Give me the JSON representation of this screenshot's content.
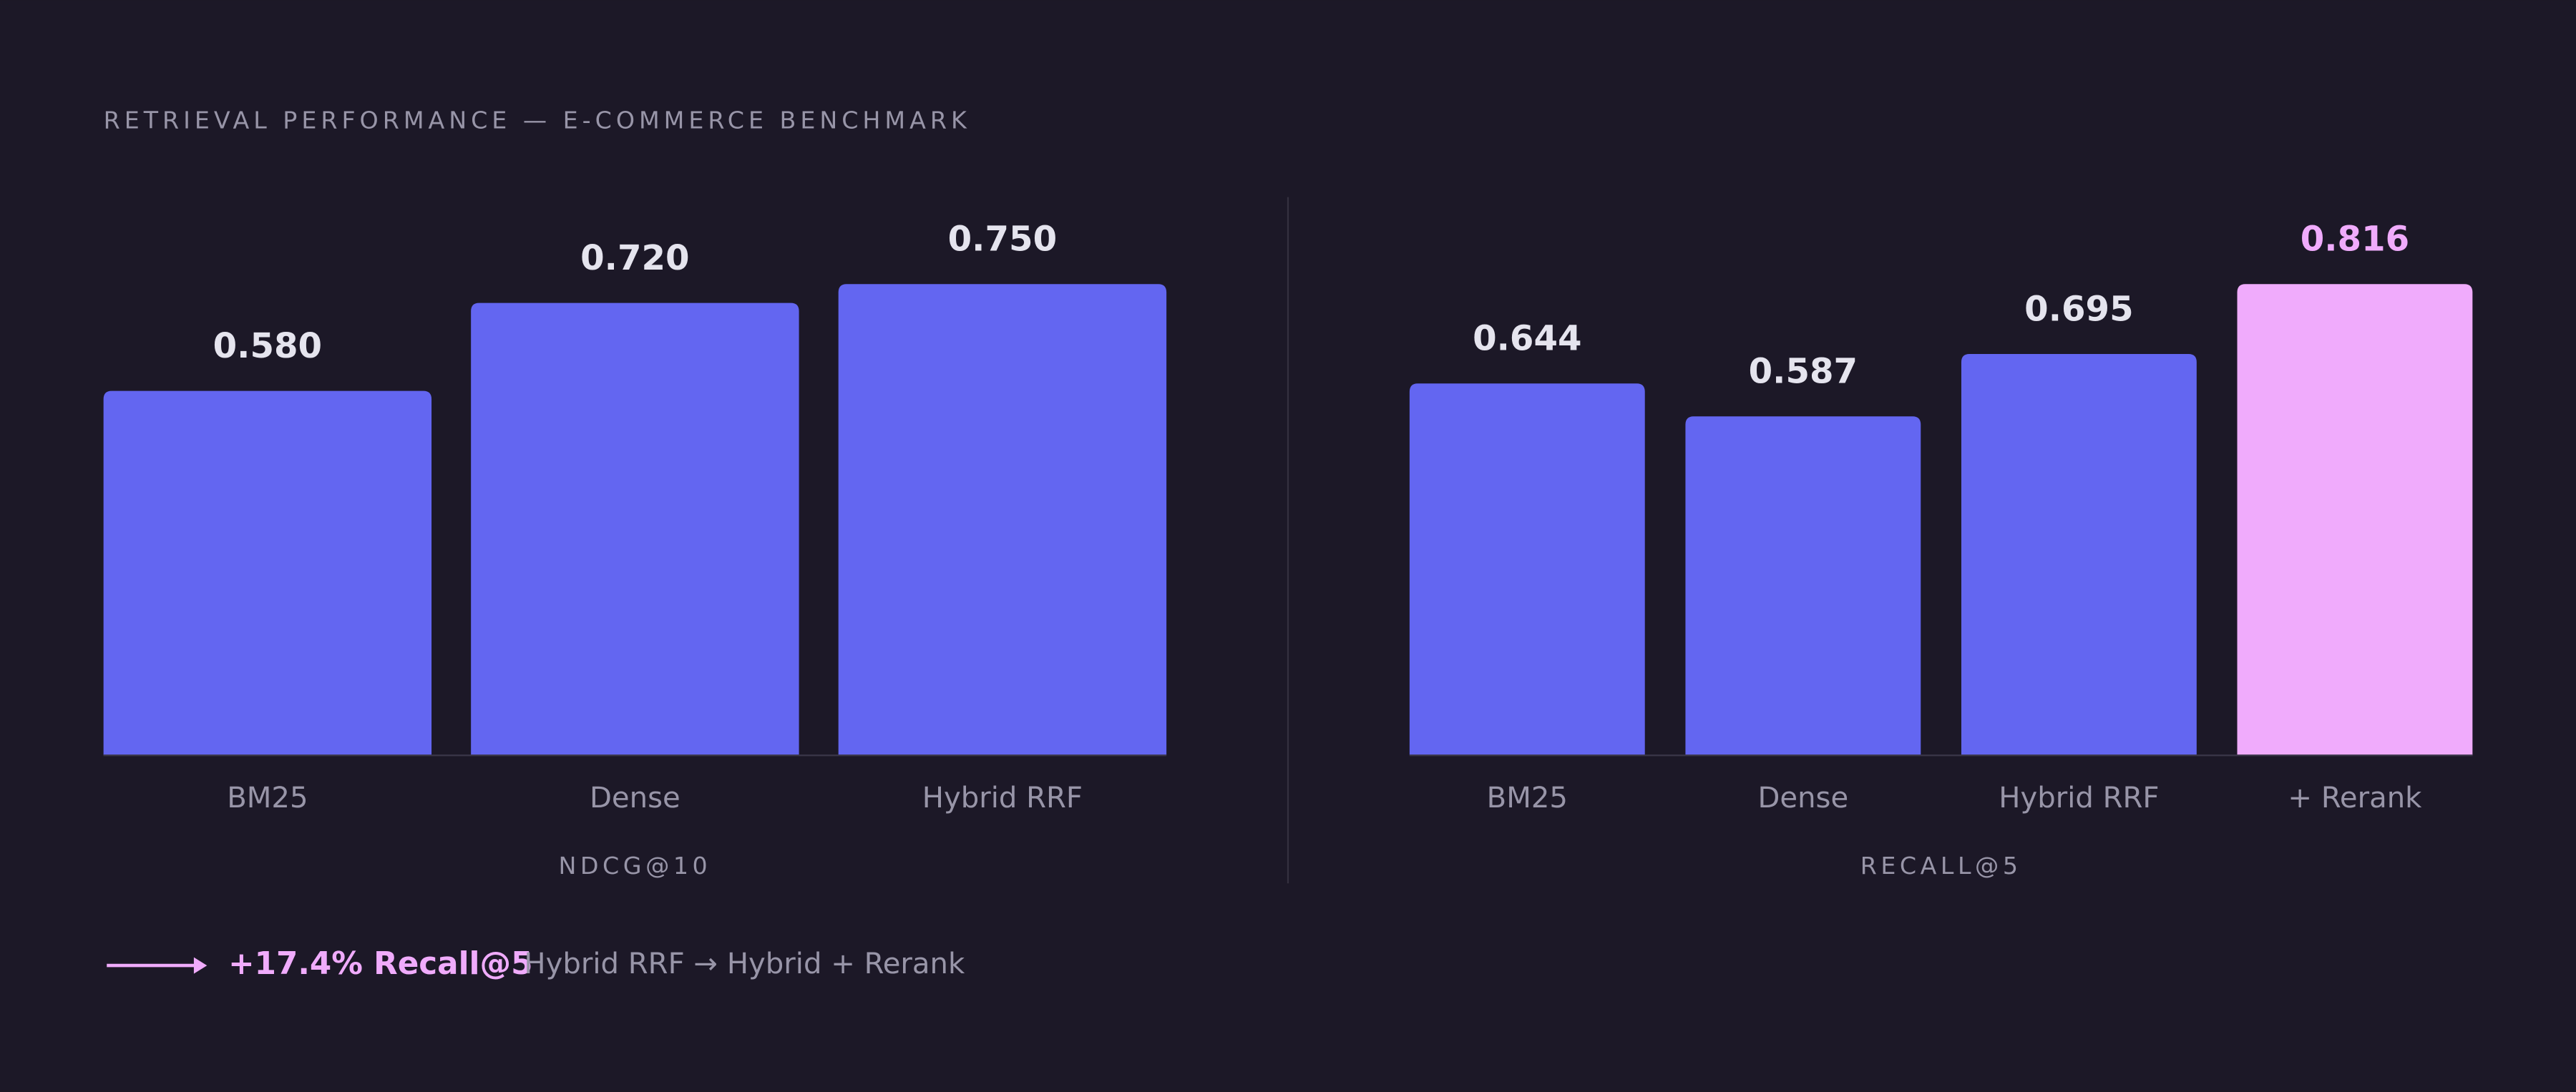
{
  "title": "RETRIEVAL PERFORMANCE — E-COMMERCE BENCHMARK",
  "chart_data": [
    {
      "type": "bar",
      "x_label": "NDCG@10",
      "categories": [
        "BM25",
        "Dense",
        "Hybrid RRF"
      ],
      "values": [
        0.58,
        0.72,
        0.75
      ],
      "value_labels": [
        "0.580",
        "0.720",
        "0.750"
      ],
      "color": "#6366f1",
      "ylim": [
        0,
        0.75
      ]
    },
    {
      "type": "bar",
      "x_label": "RECALL@5",
      "categories": [
        "BM25",
        "Dense",
        "Hybrid RRF",
        "+ Rerank"
      ],
      "values": [
        0.644,
        0.587,
        0.695,
        0.816
      ],
      "value_labels": [
        "0.644",
        "0.587",
        "0.695",
        "0.816"
      ],
      "color": "#6366f1",
      "colors": [
        "#6366f1",
        "#6366f1",
        "#6366f1",
        "#f0abfc"
      ],
      "ylim": [
        0,
        0.816
      ]
    }
  ],
  "footer": {
    "highlight": "+17.4% Recall@5",
    "note": "Hybrid RRF → Hybrid + Rerank"
  }
}
